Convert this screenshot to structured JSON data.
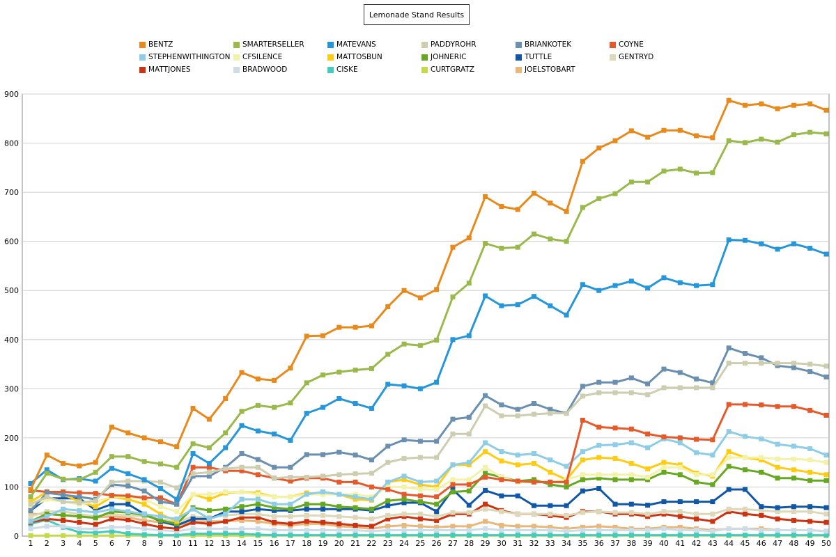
{
  "chart_data": {
    "type": "line",
    "title": "Lemonade Stand Results",
    "xlabel": "",
    "ylabel": "",
    "ylim": [
      0,
      900
    ],
    "yticks": [
      0,
      100,
      200,
      300,
      400,
      500,
      600,
      700,
      800,
      900
    ],
    "x": [
      1,
      2,
      3,
      4,
      5,
      6,
      7,
      8,
      9,
      10,
      11,
      12,
      13,
      14,
      15,
      16,
      17,
      18,
      19,
      20,
      21,
      22,
      23,
      24,
      25,
      26,
      27,
      28,
      29,
      30,
      31,
      32,
      33,
      34,
      35,
      36,
      37,
      38,
      39,
      40,
      41,
      42,
      43,
      44,
      45,
      46,
      47,
      48,
      49,
      50
    ],
    "grid": true,
    "legend_position": "top",
    "series": [
      {
        "name": "BENTZ",
        "color": "#e8891c",
        "values": [
          95,
          165,
          148,
          143,
          150,
          222,
          210,
          200,
          192,
          182,
          260,
          238,
          280,
          333,
          320,
          317,
          342,
          407,
          408,
          425,
          425,
          428,
          467,
          500,
          485,
          502,
          588,
          607,
          691,
          671,
          665,
          698,
          678,
          661,
          763,
          790,
          805,
          825,
          812,
          826,
          826,
          815,
          811,
          887,
          877,
          880,
          870,
          877,
          880,
          867
        ]
      },
      {
        "name": "SMARTERSELLER",
        "color": "#99b94a",
        "values": [
          80,
          128,
          116,
          115,
          130,
          162,
          162,
          152,
          147,
          140,
          188,
          180,
          210,
          254,
          266,
          262,
          271,
          312,
          328,
          334,
          338,
          341,
          370,
          391,
          388,
          399,
          487,
          515,
          596,
          586,
          588,
          615,
          605,
          600,
          669,
          687,
          697,
          721,
          721,
          743,
          747,
          739,
          740,
          805,
          801,
          808,
          802,
          817,
          822,
          819
        ]
      },
      {
        "name": "MATEVANS",
        "color": "#2596d9",
        "values": [
          107,
          135,
          115,
          117,
          112,
          138,
          127,
          115,
          97,
          75,
          168,
          148,
          180,
          225,
          214,
          208,
          195,
          250,
          262,
          280,
          270,
          260,
          309,
          306,
          300,
          313,
          400,
          408,
          489,
          469,
          471,
          488,
          469,
          450,
          512,
          500,
          510,
          519,
          505,
          526,
          516,
          510,
          512,
          603,
          602,
          595,
          584,
          595,
          586,
          574
        ]
      },
      {
        "name": "PADDYROHR",
        "color": "#cdcdb0",
        "values": [
          65,
          80,
          70,
          68,
          72,
          110,
          112,
          112,
          110,
          98,
          127,
          130,
          137,
          140,
          140,
          118,
          120,
          120,
          122,
          125,
          127,
          128,
          150,
          158,
          160,
          160,
          208,
          208,
          265,
          245,
          245,
          248,
          250,
          250,
          285,
          292,
          292,
          292,
          288,
          302,
          302,
          302,
          302,
          352,
          352,
          352,
          352,
          352,
          350,
          346
        ]
      },
      {
        "name": "BRIANKOTEK",
        "color": "#6a8faf",
        "values": [
          52,
          88,
          84,
          80,
          75,
          105,
          102,
          92,
          70,
          65,
          122,
          122,
          140,
          168,
          156,
          140,
          140,
          166,
          166,
          171,
          165,
          155,
          183,
          196,
          193,
          193,
          238,
          242,
          286,
          267,
          258,
          270,
          258,
          250,
          305,
          313,
          313,
          322,
          310,
          340,
          333,
          320,
          312,
          383,
          372,
          363,
          347,
          343,
          335,
          324
        ]
      },
      {
        "name": "COYNE",
        "color": "#e55a2b",
        "values": [
          93,
          90,
          90,
          88,
          87,
          83,
          82,
          78,
          78,
          65,
          140,
          140,
          133,
          133,
          125,
          118,
          112,
          118,
          118,
          110,
          110,
          100,
          95,
          85,
          82,
          80,
          105,
          105,
          120,
          115,
          112,
          110,
          110,
          110,
          236,
          222,
          220,
          218,
          208,
          202,
          200,
          197,
          196,
          268,
          268,
          267,
          264,
          264,
          256,
          246
        ]
      },
      {
        "name": "STEPHENWITHINGTON",
        "color": "#8dcde6",
        "values": [
          30,
          40,
          55,
          52,
          48,
          55,
          50,
          45,
          40,
          35,
          55,
          35,
          45,
          75,
          75,
          65,
          65,
          85,
          90,
          85,
          80,
          75,
          110,
          122,
          110,
          112,
          145,
          150,
          190,
          172,
          165,
          168,
          155,
          142,
          172,
          185,
          186,
          190,
          180,
          198,
          190,
          170,
          165,
          213,
          203,
          198,
          187,
          183,
          178,
          165
        ]
      },
      {
        "name": "CFSILENCE",
        "color": "#f2f2a8",
        "values": [
          60,
          75,
          70,
          65,
          70,
          80,
          80,
          75,
          60,
          50,
          85,
          85,
          90,
          90,
          85,
          80,
          80,
          85,
          85,
          85,
          85,
          80,
          100,
          100,
          95,
          95,
          115,
          115,
          140,
          120,
          110,
          110,
          110,
          115,
          125,
          125,
          125,
          125,
          120,
          140,
          140,
          125,
          125,
          160,
          160,
          160,
          157,
          157,
          155,
          150
        ]
      },
      {
        "name": "MATTOSBUN",
        "color": "#ffcc11",
        "values": [
          70,
          90,
          85,
          70,
          60,
          80,
          75,
          65,
          45,
          30,
          85,
          75,
          88,
          90,
          88,
          80,
          80,
          88,
          85,
          85,
          75,
          73,
          110,
          115,
          105,
          100,
          145,
          145,
          172,
          153,
          145,
          148,
          130,
          115,
          155,
          160,
          158,
          148,
          137,
          150,
          145,
          128,
          122,
          172,
          160,
          155,
          140,
          135,
          130,
          125
        ]
      },
      {
        "name": "JOHNERIC",
        "color": "#66a820",
        "values": [
          30,
          45,
          43,
          40,
          37,
          50,
          48,
          43,
          32,
          25,
          58,
          52,
          55,
          60,
          65,
          58,
          55,
          65,
          65,
          60,
          58,
          55,
          72,
          75,
          70,
          65,
          90,
          92,
          128,
          120,
          112,
          115,
          105,
          100,
          115,
          118,
          115,
          115,
          115,
          130,
          125,
          110,
          105,
          142,
          135,
          130,
          118,
          118,
          113,
          113
        ]
      },
      {
        "name": "TUTTLE",
        "color": "#1057a8",
        "values": [
          52,
          77,
          77,
          77,
          53,
          65,
          65,
          45,
          30,
          22,
          35,
          35,
          50,
          50,
          55,
          52,
          52,
          55,
          55,
          55,
          55,
          52,
          62,
          68,
          68,
          50,
          95,
          63,
          93,
          82,
          82,
          62,
          62,
          62,
          92,
          97,
          65,
          65,
          63,
          70,
          70,
          70,
          70,
          95,
          95,
          60,
          58,
          60,
          60,
          58
        ]
      },
      {
        "name": "GENTRYD",
        "color": "#ddd8b8",
        "values": [
          40,
          50,
          50,
          45,
          40,
          45,
          42,
          40,
          35,
          28,
          40,
          38,
          42,
          45,
          45,
          40,
          40,
          42,
          42,
          40,
          38,
          35,
          42,
          45,
          45,
          40,
          48,
          48,
          55,
          50,
          45,
          45,
          45,
          42,
          48,
          50,
          48,
          48,
          45,
          50,
          50,
          45,
          45,
          55,
          55,
          52,
          50,
          50,
          50,
          45
        ]
      },
      {
        "name": "MATTJONES",
        "color": "#cc3311",
        "values": [
          28,
          35,
          32,
          28,
          24,
          35,
          33,
          25,
          18,
          15,
          28,
          25,
          30,
          38,
          38,
          28,
          25,
          30,
          28,
          25,
          22,
          20,
          35,
          40,
          35,
          32,
          45,
          45,
          65,
          52,
          45,
          45,
          42,
          38,
          50,
          50,
          45,
          45,
          40,
          45,
          40,
          35,
          30,
          50,
          45,
          42,
          35,
          32,
          30,
          28
        ]
      },
      {
        "name": "BRADWOOD",
        "color": "#ccdde8",
        "values": [
          15,
          20,
          20,
          15,
          15,
          18,
          18,
          15,
          12,
          10,
          15,
          15,
          15,
          15,
          15,
          12,
          12,
          12,
          12,
          12,
          12,
          10,
          12,
          12,
          12,
          12,
          12,
          12,
          15,
          12,
          12,
          12,
          12,
          10,
          12,
          12,
          12,
          12,
          12,
          15,
          12,
          12,
          10,
          15,
          15,
          12,
          12,
          12,
          12,
          10
        ]
      },
      {
        "name": "CISKE",
        "color": "#44ccbb",
        "values": [
          25,
          33,
          18,
          8,
          7,
          10,
          5,
          3,
          2,
          2,
          5,
          5,
          5,
          5,
          3,
          2,
          2,
          2,
          2,
          2,
          2,
          2,
          2,
          2,
          2,
          2,
          2,
          2,
          2,
          2,
          2,
          2,
          2,
          2,
          2,
          2,
          2,
          2,
          2,
          2,
          2,
          2,
          2,
          2,
          2,
          2,
          2,
          2,
          2,
          2
        ]
      },
      {
        "name": "CURTGRATZ",
        "color": "#c6d94a",
        "values": [
          1,
          1,
          1,
          1,
          1,
          1,
          1,
          1,
          1,
          1,
          1,
          1,
          1,
          1,
          1,
          1,
          1,
          1,
          1,
          1,
          1,
          1,
          1,
          1,
          1,
          1,
          1,
          1,
          1,
          1,
          1,
          1,
          1,
          1,
          1,
          1,
          1,
          1,
          1,
          1,
          1,
          1,
          1,
          1,
          1,
          1,
          1,
          1,
          1,
          1
        ]
      },
      {
        "name": "JOELSTOBART",
        "color": "#e8b77a",
        "values": [
          45,
          45,
          42,
          40,
          38,
          40,
          38,
          32,
          28,
          22,
          30,
          30,
          30,
          32,
          30,
          25,
          22,
          25,
          25,
          20,
          18,
          15,
          20,
          22,
          20,
          18,
          20,
          20,
          30,
          22,
          20,
          20,
          18,
          15,
          18,
          20,
          18,
          15,
          15,
          18,
          18,
          15,
          12,
          15,
          15,
          15,
          12,
          12,
          12,
          10
        ]
      }
    ]
  }
}
